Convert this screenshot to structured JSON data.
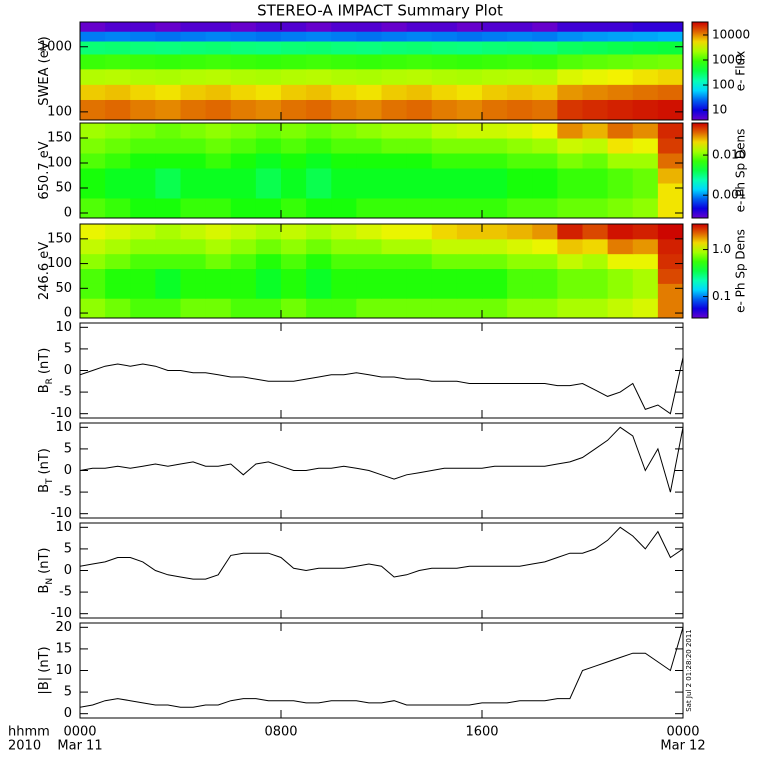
{
  "title": "STEREO-A IMPACT Summary Plot",
  "xaxis": {
    "xlim": [
      0,
      24
    ],
    "xticks": [
      {
        "value": 0,
        "label": "0000"
      },
      {
        "value": 8,
        "label": "0800"
      },
      {
        "value": 16,
        "label": "1600"
      },
      {
        "value": 24,
        "label": "0000"
      }
    ],
    "date_labels": [
      {
        "value": 0,
        "label": "Mar 11"
      },
      {
        "value": 24,
        "label": "Mar 12"
      }
    ],
    "row_labels": [
      "hhmm",
      "2010"
    ]
  },
  "timestamp": "Sat Jul  2 01:28:20 2011",
  "chart_data": [
    {
      "type": "heatmap",
      "ylabel": "SWEA (eV)",
      "log": true,
      "ylim": [
        75,
        2400
      ],
      "yticks": [
        100,
        1000
      ],
      "xbins": [
        0,
        1,
        2,
        3,
        4,
        5,
        6,
        7,
        8,
        9,
        10,
        11,
        12,
        13,
        14,
        15,
        16,
        17,
        18,
        19,
        20,
        21,
        22,
        23,
        24
      ],
      "y": [
        120,
        200,
        350,
        600,
        1000,
        1500,
        2000
      ],
      "z": [
        [
          12000,
          13000,
          11000,
          10000,
          12000,
          13000,
          11000,
          10000,
          12000,
          13000,
          11000,
          10000,
          12000,
          13000,
          11000,
          10000,
          12000,
          13000,
          12000,
          20000,
          22000,
          24000,
          26000,
          28000
        ],
        [
          6000,
          6500,
          5500,
          5000,
          6000,
          6500,
          5500,
          5000,
          6000,
          6500,
          5500,
          5000,
          6000,
          6500,
          5500,
          5000,
          6000,
          6500,
          6000,
          9000,
          10000,
          11000,
          12000,
          13000
        ],
        [
          2500,
          2600,
          2400,
          2300,
          2500,
          2600,
          2400,
          2300,
          2500,
          2600,
          2400,
          2300,
          2500,
          2600,
          2400,
          2300,
          2500,
          2600,
          2500,
          3500,
          4000,
          4500,
          5000,
          5500
        ],
        [
          900,
          950,
          900,
          850,
          900,
          950,
          900,
          850,
          900,
          950,
          900,
          850,
          900,
          950,
          900,
          850,
          900,
          950,
          900,
          1100,
          1200,
          1300,
          1400,
          1500
        ],
        [
          250,
          260,
          240,
          230,
          250,
          260,
          240,
          230,
          250,
          260,
          240,
          230,
          250,
          260,
          240,
          230,
          250,
          260,
          250,
          300,
          320,
          350,
          380,
          400
        ],
        [
          30,
          32,
          30,
          28,
          30,
          32,
          30,
          28,
          30,
          32,
          30,
          28,
          30,
          32,
          30,
          28,
          30,
          32,
          30,
          35,
          38,
          40,
          42,
          45
        ],
        [
          4,
          5,
          5,
          4,
          5,
          5,
          4,
          5,
          5,
          4,
          5,
          5,
          4,
          5,
          5,
          4,
          5,
          5,
          4,
          6,
          6,
          6,
          7,
          7
        ]
      ],
      "clim": [
        4,
        33000
      ],
      "cticks": [
        10,
        100,
        1000,
        10000
      ],
      "clabel": "e- Flux"
    },
    {
      "type": "heatmap",
      "ylabel": "650.7 eV",
      "log": false,
      "ylim": [
        -10,
        180
      ],
      "yticks": [
        0,
        50,
        100,
        150
      ],
      "xbins": [
        0,
        1,
        2,
        3,
        4,
        5,
        6,
        7,
        8,
        9,
        10,
        11,
        12,
        13,
        14,
        15,
        16,
        17,
        18,
        19,
        20,
        21,
        22,
        23,
        24
      ],
      "y": [
        15,
        45,
        75,
        105,
        135,
        165
      ],
      "z": [
        [
          0.008,
          0.007,
          0.006,
          0.006,
          0.007,
          0.007,
          0.006,
          0.006,
          0.007,
          0.006,
          0.006,
          0.007,
          0.007,
          0.007,
          0.007,
          0.007,
          0.007,
          0.008,
          0.008,
          0.009,
          0.009,
          0.01,
          0.011,
          0.02
        ],
        [
          0.006,
          0.005,
          0.005,
          0.004,
          0.005,
          0.005,
          0.005,
          0.004,
          0.005,
          0.004,
          0.005,
          0.005,
          0.005,
          0.005,
          0.005,
          0.005,
          0.005,
          0.006,
          0.006,
          0.007,
          0.007,
          0.008,
          0.009,
          0.02
        ],
        [
          0.006,
          0.005,
          0.005,
          0.004,
          0.005,
          0.005,
          0.005,
          0.004,
          0.005,
          0.004,
          0.005,
          0.005,
          0.005,
          0.005,
          0.005,
          0.005,
          0.005,
          0.006,
          0.006,
          0.007,
          0.007,
          0.008,
          0.009,
          0.025
        ],
        [
          0.008,
          0.007,
          0.006,
          0.006,
          0.006,
          0.007,
          0.006,
          0.005,
          0.006,
          0.005,
          0.006,
          0.006,
          0.006,
          0.006,
          0.007,
          0.007,
          0.007,
          0.008,
          0.008,
          0.01,
          0.009,
          0.012,
          0.012,
          0.035
        ],
        [
          0.01,
          0.009,
          0.008,
          0.008,
          0.008,
          0.009,
          0.008,
          0.007,
          0.008,
          0.007,
          0.008,
          0.008,
          0.009,
          0.009,
          0.01,
          0.01,
          0.01,
          0.011,
          0.012,
          0.015,
          0.014,
          0.02,
          0.018,
          0.045
        ],
        [
          0.012,
          0.011,
          0.01,
          0.009,
          0.01,
          0.011,
          0.01,
          0.009,
          0.01,
          0.009,
          0.01,
          0.011,
          0.012,
          0.012,
          0.014,
          0.015,
          0.015,
          0.016,
          0.018,
          0.03,
          0.025,
          0.035,
          0.03,
          0.05
        ]
      ],
      "clim": [
        0.00027,
        0.063
      ],
      "cticks": [
        0.001,
        {
          "value": 0.01,
          "label": "0.010"
        }
      ],
      "clabel": "e- Ph Sp Dens"
    },
    {
      "type": "heatmap",
      "ylabel": "246.6 eV",
      "log": false,
      "ylim": [
        -10,
        180
      ],
      "yticks": [
        0,
        50,
        100,
        150
      ],
      "xbins": [
        0,
        1,
        2,
        3,
        4,
        5,
        6,
        7,
        8,
        9,
        10,
        11,
        12,
        13,
        14,
        15,
        16,
        17,
        18,
        19,
        20,
        21,
        22,
        23,
        24
      ],
      "y": [
        15,
        45,
        75,
        105,
        135,
        165
      ],
      "z": [
        [
          0.8,
          0.7,
          0.6,
          0.6,
          0.7,
          0.7,
          0.6,
          0.6,
          0.7,
          0.6,
          0.6,
          0.7,
          0.7,
          0.7,
          0.7,
          0.7,
          0.7,
          0.8,
          0.8,
          0.9,
          0.9,
          1.0,
          1.1,
          2.0
        ],
        [
          0.6,
          0.5,
          0.5,
          0.4,
          0.5,
          0.5,
          0.5,
          0.4,
          0.5,
          0.4,
          0.5,
          0.5,
          0.5,
          0.5,
          0.5,
          0.5,
          0.5,
          0.6,
          0.6,
          0.7,
          0.7,
          0.8,
          0.9,
          2.0
        ],
        [
          0.6,
          0.5,
          0.5,
          0.4,
          0.5,
          0.5,
          0.5,
          0.4,
          0.5,
          0.4,
          0.5,
          0.5,
          0.5,
          0.5,
          0.5,
          0.5,
          0.5,
          0.6,
          0.6,
          0.7,
          0.7,
          0.8,
          0.9,
          2.5
        ],
        [
          0.8,
          0.7,
          0.6,
          0.6,
          0.6,
          0.7,
          0.6,
          0.5,
          0.6,
          0.5,
          0.6,
          0.6,
          0.6,
          0.6,
          0.7,
          0.7,
          0.7,
          0.8,
          0.8,
          1.0,
          0.9,
          1.2,
          1.2,
          2.8
        ],
        [
          1.0,
          0.9,
          0.8,
          0.8,
          0.8,
          0.9,
          0.8,
          0.7,
          0.8,
          0.7,
          0.8,
          0.8,
          0.9,
          0.9,
          1.0,
          1.0,
          1.0,
          1.1,
          1.2,
          1.5,
          1.4,
          2.0,
          1.8,
          3.0
        ],
        [
          1.2,
          1.1,
          1.0,
          0.9,
          1.0,
          1.1,
          1.0,
          0.9,
          1.0,
          0.9,
          1.0,
          1.1,
          1.2,
          1.2,
          1.4,
          1.5,
          1.5,
          1.6,
          1.8,
          3.0,
          2.5,
          3.2,
          3.0,
          3.4
        ]
      ],
      "clim": [
        0.035,
        3.5
      ],
      "cticks": [
        0.1,
        {
          "value": 1,
          "label": "1.0"
        }
      ],
      "clabel": "e- Ph Sp Dens"
    },
    {
      "type": "line",
      "ylabel": "B",
      "ylabel_sub": "R",
      "ylabel_unit": "(nT)",
      "ylim": [
        -11,
        11
      ],
      "yticks": [
        -10,
        -5,
        0,
        5,
        10
      ],
      "x": [
        0,
        0.5,
        1,
        1.5,
        2,
        2.5,
        3,
        3.5,
        4,
        4.5,
        5,
        5.5,
        6,
        6.5,
        7,
        7.5,
        8,
        8.5,
        9,
        9.5,
        10,
        10.5,
        11,
        11.5,
        12,
        12.5,
        13,
        13.5,
        14,
        14.5,
        15,
        15.5,
        16,
        16.5,
        17,
        17.5,
        18,
        18.5,
        19,
        19.5,
        20,
        20.5,
        21,
        21.5,
        22,
        22.5,
        23,
        23.5,
        24
      ],
      "values": [
        -1,
        0,
        1,
        1.5,
        1,
        1.5,
        1,
        0,
        0,
        -0.5,
        -0.5,
        -1,
        -1.5,
        -1.5,
        -2,
        -2.5,
        -2.5,
        -2.5,
        -2,
        -1.5,
        -1,
        -1,
        -0.5,
        -1,
        -1.5,
        -1.5,
        -2,
        -2,
        -2.5,
        -2.5,
        -2.5,
        -3,
        -3,
        -3,
        -3,
        -3,
        -3,
        -3,
        -3.5,
        -3.5,
        -3,
        -4.5,
        -6,
        -5,
        -3,
        -9,
        -8,
        -10,
        3
      ]
    },
    {
      "type": "line",
      "ylabel": "B",
      "ylabel_sub": "T",
      "ylabel_unit": "(nT)",
      "ylim": [
        -11,
        11
      ],
      "yticks": [
        -10,
        -5,
        0,
        5,
        10
      ],
      "x": [
        0,
        0.5,
        1,
        1.5,
        2,
        2.5,
        3,
        3.5,
        4,
        4.5,
        5,
        5.5,
        6,
        6.5,
        7,
        7.5,
        8,
        8.5,
        9,
        9.5,
        10,
        10.5,
        11,
        11.5,
        12,
        12.5,
        13,
        13.5,
        14,
        14.5,
        15,
        15.5,
        16,
        16.5,
        17,
        17.5,
        18,
        18.5,
        19,
        19.5,
        20,
        20.5,
        21,
        21.5,
        22,
        22.5,
        23,
        23.5,
        24
      ],
      "values": [
        0,
        0.5,
        0.5,
        1,
        0.5,
        1,
        1.5,
        1,
        1.5,
        2,
        1,
        1,
        1.5,
        -1,
        1.5,
        2,
        1,
        0,
        0,
        0.5,
        0.5,
        1,
        0.5,
        0,
        -1,
        -2,
        -1,
        -0.5,
        0,
        0.5,
        0.5,
        0.5,
        0.5,
        1,
        1,
        1,
        1,
        1,
        1.5,
        2,
        3,
        5,
        7,
        10,
        8,
        0,
        5,
        -5,
        10
      ]
    },
    {
      "type": "line",
      "ylabel": "B",
      "ylabel_sub": "N",
      "ylabel_unit": "(nT)",
      "ylim": [
        -11,
        11
      ],
      "yticks": [
        -10,
        -5,
        0,
        5,
        10
      ],
      "x": [
        0,
        0.5,
        1,
        1.5,
        2,
        2.5,
        3,
        3.5,
        4,
        4.5,
        5,
        5.5,
        6,
        6.5,
        7,
        7.5,
        8,
        8.5,
        9,
        9.5,
        10,
        10.5,
        11,
        11.5,
        12,
        12.5,
        13,
        13.5,
        14,
        14.5,
        15,
        15.5,
        16,
        16.5,
        17,
        17.5,
        18,
        18.5,
        19,
        19.5,
        20,
        20.5,
        21,
        21.5,
        22,
        22.5,
        23,
        23.5,
        24
      ],
      "values": [
        1,
        1.5,
        2,
        3,
        3,
        2,
        0,
        -1,
        -1.5,
        -2,
        -2,
        -1,
        3.5,
        4,
        4,
        4,
        3,
        0.5,
        0,
        0.5,
        0.5,
        0.5,
        1,
        1.5,
        1,
        -1.5,
        -1,
        0,
        0.5,
        0.5,
        0.5,
        1,
        1,
        1,
        1,
        1,
        1.5,
        2,
        3,
        4,
        4,
        5,
        7,
        10,
        8,
        5,
        9,
        3,
        5
      ]
    },
    {
      "type": "line",
      "ylabel": "|B| (nT)",
      "ylim": [
        -1,
        21
      ],
      "yticks": [
        0,
        5,
        10,
        15,
        20
      ],
      "x": [
        0,
        0.5,
        1,
        1.5,
        2,
        2.5,
        3,
        3.5,
        4,
        4.5,
        5,
        5.5,
        6,
        6.5,
        7,
        7.5,
        8,
        8.5,
        9,
        9.5,
        10,
        10.5,
        11,
        11.5,
        12,
        12.5,
        13,
        13.5,
        14,
        14.5,
        15,
        15.5,
        16,
        16.5,
        17,
        17.5,
        18,
        18.5,
        19,
        19.5,
        20,
        20.5,
        21,
        21.5,
        22,
        22.5,
        23,
        23.5,
        24
      ],
      "values": [
        1.5,
        2,
        3,
        3.5,
        3,
        2.5,
        2,
        2,
        1.5,
        1.5,
        2,
        2,
        3,
        3.5,
        3.5,
        3,
        3,
        3,
        2.5,
        2.5,
        3,
        3,
        3,
        2.5,
        2.5,
        3,
        2,
        2,
        2,
        2,
        2,
        2,
        2.5,
        2.5,
        2.5,
        3,
        3,
        3,
        3.5,
        3.5,
        10,
        11,
        12,
        13,
        14,
        14,
        12,
        10,
        20
      ]
    }
  ]
}
